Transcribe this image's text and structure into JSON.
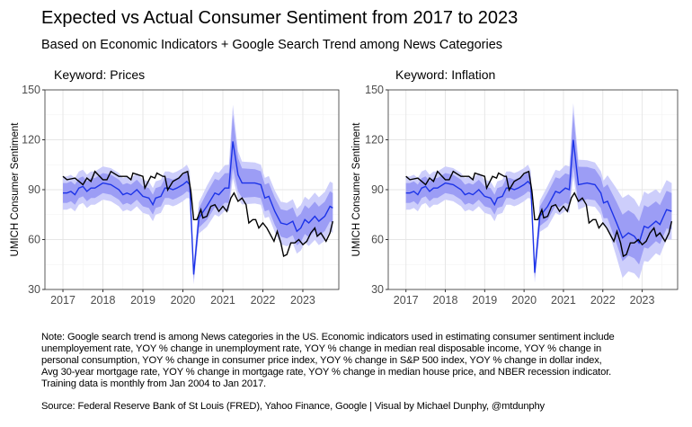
{
  "title": "Expected vs Actual Consumer Sentiment from 2017 to 2023",
  "subtitle": "Based on Economic Indicators + Google Search Trend among News Categories",
  "note_lines": [
    "Note: Google search trend is among News categories in the US. Economic indicators used in estimating consumer sentiment include",
    "unemployement rate, YOY % change in unemployment rate, YOY % change in median real disposable income, YOY % change in",
    "personal consumption, YOY % change in consumer price index, YOY % change in S&P 500 index, YOY % change in dollar index,",
    "Avg 30-year mortgage rate, YOY % change in mortgage rate, YOY % change in median house price, and NBER recession indicator.",
    "Training data is monthly from Jan 2004 to Jan 2017."
  ],
  "source": "Source: Federal Reserve Bank of St Louis (FRED), Yahoo Finance, Google | Visual by Michael Dunphy, @mtdunphy",
  "colors": {
    "band_outer": "#cdcefb",
    "band_inner": "#9c9df5",
    "predicted": "#1c33e8",
    "actual": "#000000"
  },
  "chart_data": [
    {
      "type": "line",
      "title": "Keyword: Prices",
      "ylabel": "UMICH Consumer Sentiment",
      "xlabel": "",
      "xlim": [
        2016.55,
        2023.9
      ],
      "ylim": [
        30,
        150
      ],
      "xticks": [
        "2017",
        "2018",
        "2019",
        "2020",
        "2021",
        "2022",
        "2023"
      ],
      "yticks": [
        "30",
        "60",
        "90",
        "120",
        "150"
      ],
      "grid": true,
      "actual": [
        [
          2017.0,
          98
        ],
        [
          2017.1,
          96
        ],
        [
          2017.3,
          97
        ],
        [
          2017.5,
          93
        ],
        [
          2017.6,
          97
        ],
        [
          2017.7,
          95
        ],
        [
          2017.8,
          101
        ],
        [
          2018.0,
          96
        ],
        [
          2018.1,
          96
        ],
        [
          2018.2,
          101
        ],
        [
          2018.4,
          98
        ],
        [
          2018.6,
          98
        ],
        [
          2018.7,
          96
        ],
        [
          2018.75,
          100
        ],
        [
          2019.0,
          98
        ],
        [
          2019.05,
          91
        ],
        [
          2019.2,
          98
        ],
        [
          2019.3,
          97
        ],
        [
          2019.35,
          100
        ],
        [
          2019.5,
          98
        ],
        [
          2019.55,
          98
        ],
        [
          2019.62,
          89.8
        ],
        [
          2019.75,
          95
        ],
        [
          2019.9,
          97
        ],
        [
          2020.0,
          99.8
        ],
        [
          2020.12,
          101
        ],
        [
          2020.2,
          89
        ],
        [
          2020.27,
          72
        ],
        [
          2020.35,
          72
        ],
        [
          2020.45,
          78
        ],
        [
          2020.5,
          73
        ],
        [
          2020.6,
          74
        ],
        [
          2020.7,
          80
        ],
        [
          2020.8,
          81
        ],
        [
          2020.9,
          77
        ],
        [
          2021.0,
          80
        ],
        [
          2021.1,
          77
        ],
        [
          2021.2,
          85
        ],
        [
          2021.28,
          88
        ],
        [
          2021.38,
          83
        ],
        [
          2021.48,
          85
        ],
        [
          2021.58,
          81
        ],
        [
          2021.65,
          70
        ],
        [
          2021.75,
          72
        ],
        [
          2021.82,
          72
        ],
        [
          2021.9,
          67
        ],
        [
          2022.0,
          70
        ],
        [
          2022.1,
          67
        ],
        [
          2022.28,
          59
        ],
        [
          2022.36,
          65
        ],
        [
          2022.45,
          58
        ],
        [
          2022.52,
          50
        ],
        [
          2022.6,
          51
        ],
        [
          2022.7,
          58
        ],
        [
          2022.8,
          58
        ],
        [
          2022.9,
          60
        ],
        [
          2023.0,
          57
        ],
        [
          2023.1,
          59
        ],
        [
          2023.2,
          64
        ],
        [
          2023.3,
          67
        ],
        [
          2023.36,
          62
        ],
        [
          2023.45,
          64
        ],
        [
          2023.58,
          59
        ],
        [
          2023.68,
          64
        ],
        [
          2023.75,
          71
        ]
      ],
      "predicted": [
        [
          2017.0,
          88
        ],
        [
          2017.1,
          88
        ],
        [
          2017.2,
          89
        ],
        [
          2017.3,
          87
        ],
        [
          2017.4,
          91
        ],
        [
          2017.5,
          92
        ],
        [
          2017.6,
          89
        ],
        [
          2017.7,
          91
        ],
        [
          2017.8,
          91
        ],
        [
          2018.0,
          94
        ],
        [
          2018.2,
          93
        ],
        [
          2018.4,
          90
        ],
        [
          2018.5,
          87
        ],
        [
          2018.6,
          88
        ],
        [
          2018.7,
          87
        ],
        [
          2018.85,
          90
        ],
        [
          2019.0,
          86
        ],
        [
          2019.15,
          85
        ],
        [
          2019.25,
          81
        ],
        [
          2019.32,
          85
        ],
        [
          2019.45,
          86
        ],
        [
          2019.55,
          91
        ],
        [
          2019.65,
          91
        ],
        [
          2019.75,
          90
        ],
        [
          2019.85,
          91
        ],
        [
          2020.0,
          93
        ],
        [
          2020.1,
          95
        ],
        [
          2020.17,
          93
        ],
        [
          2020.27,
          39
        ],
        [
          2020.4,
          73
        ],
        [
          2020.6,
          80
        ],
        [
          2020.8,
          88
        ],
        [
          2020.9,
          87
        ],
        [
          2021.05,
          91
        ],
        [
          2021.15,
          91
        ],
        [
          2021.25,
          119
        ],
        [
          2021.38,
          99
        ],
        [
          2021.48,
          94
        ],
        [
          2021.8,
          94
        ],
        [
          2021.95,
          93
        ],
        [
          2022.05,
          85
        ],
        [
          2022.15,
          86
        ],
        [
          2022.3,
          77
        ],
        [
          2022.45,
          70
        ],
        [
          2022.6,
          69
        ],
        [
          2022.75,
          71
        ],
        [
          2022.85,
          65
        ],
        [
          2022.95,
          67
        ],
        [
          2023.05,
          72
        ],
        [
          2023.15,
          70
        ],
        [
          2023.3,
          74
        ],
        [
          2023.4,
          71
        ],
        [
          2023.55,
          74
        ],
        [
          2023.68,
          80
        ],
        [
          2023.75,
          79
        ]
      ],
      "band_halfwidth": [
        [
          2017.0,
          6,
          10
        ],
        [
          2020.1,
          6,
          10
        ],
        [
          2020.27,
          3,
          6
        ],
        [
          2020.5,
          8,
          12
        ],
        [
          2021.15,
          9,
          14
        ],
        [
          2021.25,
          16,
          22
        ],
        [
          2021.4,
          9,
          13
        ],
        [
          2022.0,
          8,
          12
        ],
        [
          2023.75,
          9,
          15
        ]
      ]
    },
    {
      "type": "line",
      "title": "Keyword: Inflation",
      "ylabel": "UMICH Consumer Sentiment",
      "xlabel": "",
      "xlim": [
        2016.55,
        2023.9
      ],
      "ylim": [
        30,
        150
      ],
      "xticks": [
        "2017",
        "2018",
        "2019",
        "2020",
        "2021",
        "2022",
        "2023"
      ],
      "yticks": [
        "30",
        "60",
        "90",
        "120",
        "150"
      ],
      "grid": true,
      "actual": [
        [
          2017.0,
          98
        ],
        [
          2017.1,
          96
        ],
        [
          2017.3,
          97
        ],
        [
          2017.5,
          93
        ],
        [
          2017.6,
          97
        ],
        [
          2017.7,
          95
        ],
        [
          2017.8,
          101
        ],
        [
          2018.0,
          96
        ],
        [
          2018.1,
          96
        ],
        [
          2018.2,
          101
        ],
        [
          2018.4,
          98
        ],
        [
          2018.6,
          98
        ],
        [
          2018.7,
          96
        ],
        [
          2018.75,
          100
        ],
        [
          2019.0,
          98
        ],
        [
          2019.05,
          91
        ],
        [
          2019.2,
          98
        ],
        [
          2019.3,
          97
        ],
        [
          2019.35,
          100
        ],
        [
          2019.5,
          98
        ],
        [
          2019.55,
          98
        ],
        [
          2019.62,
          89.8
        ],
        [
          2019.75,
          95
        ],
        [
          2019.9,
          97
        ],
        [
          2020.0,
          99.8
        ],
        [
          2020.12,
          101
        ],
        [
          2020.2,
          89
        ],
        [
          2020.27,
          72
        ],
        [
          2020.35,
          72
        ],
        [
          2020.45,
          78
        ],
        [
          2020.5,
          73
        ],
        [
          2020.6,
          74
        ],
        [
          2020.7,
          80
        ],
        [
          2020.8,
          81
        ],
        [
          2020.9,
          77
        ],
        [
          2021.0,
          80
        ],
        [
          2021.1,
          77
        ],
        [
          2021.2,
          85
        ],
        [
          2021.28,
          88
        ],
        [
          2021.38,
          83
        ],
        [
          2021.48,
          85
        ],
        [
          2021.58,
          81
        ],
        [
          2021.65,
          70
        ],
        [
          2021.75,
          72
        ],
        [
          2021.82,
          72
        ],
        [
          2021.9,
          67
        ],
        [
          2022.0,
          70
        ],
        [
          2022.1,
          67
        ],
        [
          2022.28,
          59
        ],
        [
          2022.36,
          65
        ],
        [
          2022.45,
          58
        ],
        [
          2022.52,
          50
        ],
        [
          2022.6,
          51
        ],
        [
          2022.7,
          58
        ],
        [
          2022.8,
          58
        ],
        [
          2022.9,
          60
        ],
        [
          2023.0,
          57
        ],
        [
          2023.1,
          59
        ],
        [
          2023.2,
          64
        ],
        [
          2023.3,
          67
        ],
        [
          2023.36,
          62
        ],
        [
          2023.45,
          64
        ],
        [
          2023.58,
          59
        ],
        [
          2023.68,
          64
        ],
        [
          2023.75,
          71
        ]
      ],
      "predicted": [
        [
          2017.0,
          88
        ],
        [
          2017.1,
          88
        ],
        [
          2017.2,
          89
        ],
        [
          2017.3,
          87
        ],
        [
          2017.4,
          91
        ],
        [
          2017.5,
          92
        ],
        [
          2017.6,
          89
        ],
        [
          2017.7,
          91
        ],
        [
          2017.8,
          91
        ],
        [
          2018.0,
          94
        ],
        [
          2018.2,
          93
        ],
        [
          2018.4,
          90
        ],
        [
          2018.5,
          87
        ],
        [
          2018.6,
          88
        ],
        [
          2018.7,
          87
        ],
        [
          2018.85,
          90
        ],
        [
          2019.0,
          86
        ],
        [
          2019.15,
          85
        ],
        [
          2019.25,
          81
        ],
        [
          2019.32,
          85
        ],
        [
          2019.45,
          86
        ],
        [
          2019.55,
          91
        ],
        [
          2019.65,
          91
        ],
        [
          2019.75,
          90
        ],
        [
          2019.85,
          91
        ],
        [
          2020.0,
          93
        ],
        [
          2020.1,
          95
        ],
        [
          2020.17,
          93
        ],
        [
          2020.27,
          40
        ],
        [
          2020.4,
          74
        ],
        [
          2020.6,
          80
        ],
        [
          2020.8,
          89
        ],
        [
          2020.9,
          88
        ],
        [
          2021.05,
          91
        ],
        [
          2021.15,
          90
        ],
        [
          2021.25,
          120
        ],
        [
          2021.38,
          93
        ],
        [
          2021.6,
          94
        ],
        [
          2021.8,
          93
        ],
        [
          2021.95,
          88
        ],
        [
          2022.02,
          82
        ],
        [
          2022.12,
          83
        ],
        [
          2022.35,
          70
        ],
        [
          2022.5,
          61
        ],
        [
          2022.65,
          64
        ],
        [
          2022.8,
          62
        ],
        [
          2022.92,
          58
        ],
        [
          2023.05,
          68
        ],
        [
          2023.15,
          67
        ],
        [
          2023.35,
          71
        ],
        [
          2023.45,
          69
        ],
        [
          2023.62,
          78
        ],
        [
          2023.75,
          77
        ]
      ],
      "band_halfwidth": [
        [
          2017.0,
          6,
          10
        ],
        [
          2020.1,
          6,
          10
        ],
        [
          2020.27,
          3,
          6
        ],
        [
          2020.5,
          8,
          12
        ],
        [
          2021.15,
          9,
          14
        ],
        [
          2021.25,
          16,
          22
        ],
        [
          2021.4,
          10,
          14
        ],
        [
          2022.0,
          9,
          13
        ],
        [
          2022.5,
          14,
          24
        ],
        [
          2023.75,
          11,
          17
        ]
      ]
    }
  ]
}
